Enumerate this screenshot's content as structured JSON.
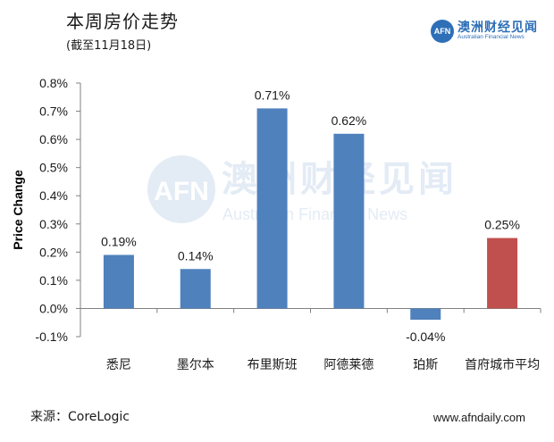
{
  "header": {
    "title": "本周房价走势",
    "subtitle": "(截至11月18日)"
  },
  "brand": {
    "logo_text": "AFN",
    "name_cn": "澳洲财经见闻",
    "name_en": "Australian Financial News"
  },
  "watermark": {
    "logo_text": "AFN",
    "name_cn": "澳洲财经见闻",
    "name_en": "Australian Financial News"
  },
  "footer": {
    "source": "来源：CoreLogic",
    "website": "www.afndaily.com"
  },
  "colors": {
    "bar": "#4f81bd",
    "highlight_bar": "#c0504d",
    "brand": "#2e6fb7"
  },
  "chart_data": {
    "type": "bar",
    "title": "本周房价走势",
    "subtitle": "(截至11月18日)",
    "xlabel": "",
    "ylabel": "Price Change",
    "ylim": [
      -0.1,
      0.8
    ],
    "y_ticks": [
      "-0.1%",
      "0.0%",
      "0.1%",
      "0.2%",
      "0.3%",
      "0.4%",
      "0.5%",
      "0.6%",
      "0.7%",
      "0.8%"
    ],
    "categories": [
      "悉尼",
      "墨尔本",
      "布里斯班",
      "阿德莱德",
      "珀斯",
      "首府城市平均"
    ],
    "values": [
      0.19,
      0.14,
      0.71,
      0.62,
      -0.04,
      0.25
    ],
    "data_labels": [
      "0.19%",
      "0.14%",
      "0.71%",
      "0.62%",
      "-0.04%",
      "0.25%"
    ],
    "highlight_index": 5,
    "grid": false,
    "legend": "none"
  }
}
